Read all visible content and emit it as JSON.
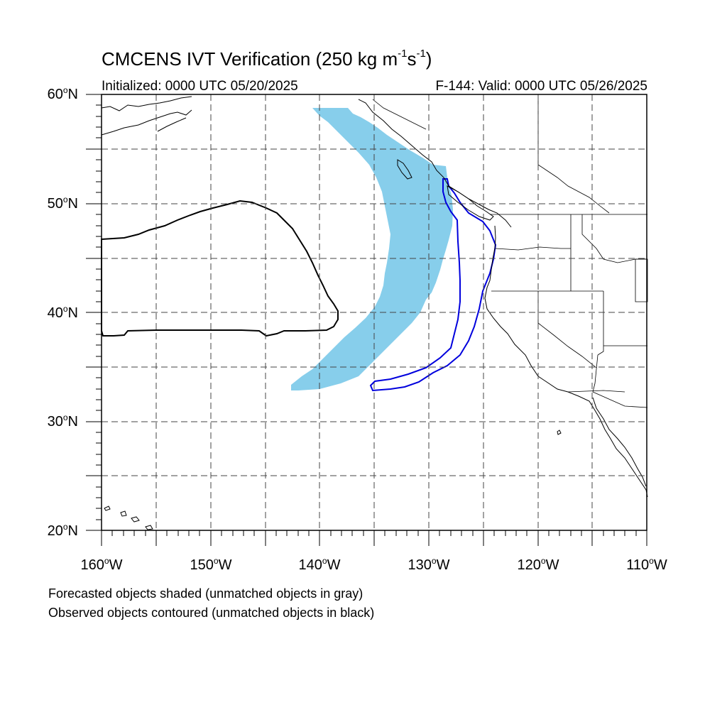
{
  "header": {
    "title_prefix": "CMCENS IVT Verification (250 kg m",
    "title_exp1": "-1",
    "title_mid": "s",
    "title_exp2": "-1",
    "title_suffix": ")",
    "initialized": "Initialized: 0000 UTC 05/20/2025",
    "valid": "F-144: Valid: 0000 UTC 05/26/2025"
  },
  "axes": {
    "lat_labels": [
      {
        "text": "60",
        "unit": "N"
      },
      {
        "text": "50",
        "unit": "N"
      },
      {
        "text": "40",
        "unit": "N"
      },
      {
        "text": "30",
        "unit": "N"
      },
      {
        "text": "20",
        "unit": "N"
      }
    ],
    "lon_labels": [
      {
        "text": "160",
        "unit": "W"
      },
      {
        "text": "150",
        "unit": "W"
      },
      {
        "text": "140",
        "unit": "W"
      },
      {
        "text": "130",
        "unit": "W"
      },
      {
        "text": "120",
        "unit": "W"
      },
      {
        "text": "110",
        "unit": "W"
      }
    ],
    "lat_range": [
      20,
      60
    ],
    "lon_range": [
      -160,
      -110
    ],
    "grid_interval_deg": 5,
    "grid_style": "dashed"
  },
  "legend": {
    "line1": "Forecasted objects shaded (unmatched objects in gray)",
    "line2": "Observed objects contoured (unmatched objects in black)"
  },
  "colors": {
    "forecast_shade": "#87CEEB",
    "matched_contour": "#0000DD",
    "unmatched_contour": "#000000",
    "coastline": "#000000"
  },
  "objects": [
    {
      "kind": "forecast",
      "matched": true,
      "description": "arc from ~58N 139W to ~33N 142W, east edge near 127W at 48N"
    },
    {
      "kind": "observed",
      "matched": true,
      "description": "narrow band from 33N 135W to 52N 128W along the coast"
    },
    {
      "kind": "observed",
      "matched": false,
      "description": "box from 38N to 50.4N, 160W to 138W"
    }
  ]
}
